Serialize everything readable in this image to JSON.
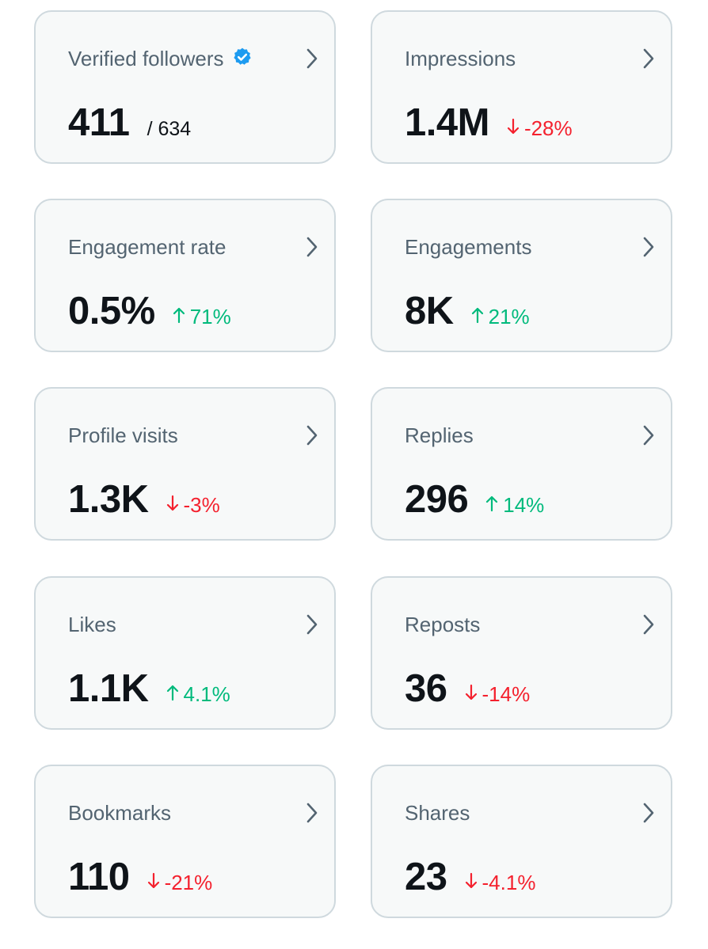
{
  "colors": {
    "card_bg": "#f7f9f9",
    "card_border": "#cfd9de",
    "title": "#536471",
    "value": "#0f1419",
    "up": "#00ba7c",
    "down": "#f4212e",
    "verified": "#1d9bf0",
    "chevron": "#536471"
  },
  "metrics": [
    {
      "label": "Verified followers",
      "value": "411",
      "suffix": "/ 634",
      "verified_icon": "verified-badge-icon"
    },
    {
      "label": "Impressions",
      "value": "1.4M",
      "delta": "-28%",
      "direction": "down"
    },
    {
      "label": "Engagement rate",
      "value": "0.5%",
      "delta": "71%",
      "direction": "up"
    },
    {
      "label": "Engagements",
      "value": "8K",
      "delta": "21%",
      "direction": "up"
    },
    {
      "label": "Profile visits",
      "value": "1.3K",
      "delta": "-3%",
      "direction": "down"
    },
    {
      "label": "Replies",
      "value": "296",
      "delta": "14%",
      "direction": "up"
    },
    {
      "label": "Likes",
      "value": "1.1K",
      "delta": "4.1%",
      "direction": "up"
    },
    {
      "label": "Reposts",
      "value": "36",
      "delta": "-14%",
      "direction": "down"
    },
    {
      "label": "Bookmarks",
      "value": "110",
      "delta": "-21%",
      "direction": "down"
    },
    {
      "label": "Shares",
      "value": "23",
      "delta": "-4.1%",
      "direction": "down"
    }
  ]
}
